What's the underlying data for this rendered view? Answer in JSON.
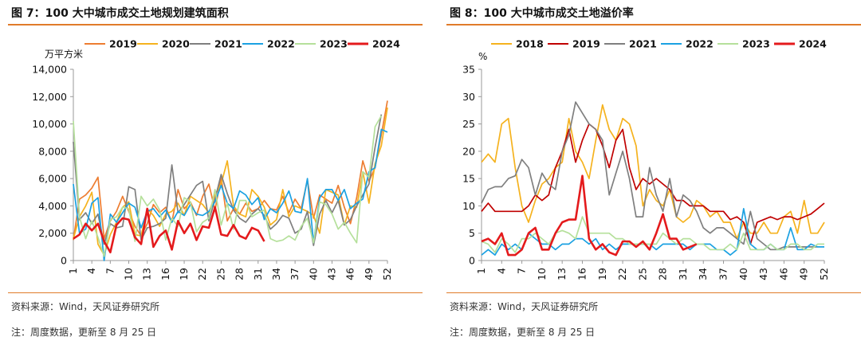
{
  "panels": [
    {
      "title": "图 7：100 大中城市成交土地规划建筑面积",
      "source": "资料来源：Wind，天风证券研究所",
      "note": "注：周度数据，更新至 8 月 25 日",
      "chart_data": {
        "type": "line",
        "ylabel": "万平方米",
        "ylim": [
          0,
          14000
        ],
        "yticks": [
          "0",
          "2,000",
          "4,000",
          "6,000",
          "8,000",
          "10,000",
          "12,000",
          "14,000"
        ],
        "xlim": [
          1,
          52
        ],
        "xticks": [
          "1",
          "4",
          "7",
          "10",
          "13",
          "16",
          "19",
          "22",
          "25",
          "28",
          "31",
          "34",
          "37",
          "40",
          "43",
          "46",
          "49",
          "52"
        ],
        "grid": false,
        "legend": "top",
        "series": [
          {
            "name": "2019",
            "color": "#ed7d31",
            "values": [
              1500,
              4500,
              4800,
              5300,
              6100,
              1600,
              2900,
              3600,
              4700,
              3600,
              2500,
              1800,
              2700,
              4100,
              3500,
              3900,
              2800,
              5200,
              3800,
              4300,
              3300,
              4700,
              5600,
              3700,
              6100,
              2900,
              3800,
              3400,
              4200,
              3600,
              3800,
              4400,
              3800,
              3700,
              4700,
              3500,
              4500,
              3800,
              5900,
              3100,
              4800,
              4500,
              4200,
              5500,
              3900,
              2700,
              4600,
              7300,
              5800,
              6800,
              9200,
              11700
            ]
          },
          {
            "name": "2020",
            "color": "#f5b21e",
            "values": [
              1600,
              3200,
              4000,
              5000,
              1200,
              400,
              1900,
              2800,
              3900,
              4300,
              1900,
              1800,
              3800,
              3300,
              2500,
              3400,
              3600,
              4200,
              3300,
              4700,
              4400,
              4100,
              3500,
              4800,
              5600,
              7300,
              4000,
              3400,
              3200,
              5200,
              4700,
              3900,
              2600,
              3000,
              5200,
              3200,
              4000,
              3800,
              3600,
              3300,
              2000,
              5200,
              5000,
              4800,
              2600,
              4000,
              3900,
              6500,
              4200,
              7100,
              8400,
              11200
            ]
          },
          {
            "name": "2021",
            "color": "#7f7f7f",
            "values": [
              8700,
              3000,
              3500,
              2700,
              3400,
              1200,
              2700,
              2400,
              2500,
              5400,
              5200,
              1500,
              2400,
              2500,
              2700,
              3100,
              7000,
              3500,
              4100,
              4800,
              5500,
              5800,
              2900,
              4500,
              6300,
              4900,
              3700,
              3100,
              2800,
              3400,
              3800,
              3300,
              2300,
              2700,
              3300,
              3100,
              2000,
              2300,
              3600,
              1100,
              3400,
              4400,
              3500,
              4400,
              2600,
              3000,
              4000,
              4800,
              5600,
              8300,
              10700
            ]
          },
          {
            "name": "2022",
            "color": "#1ba1e2",
            "values": [
              5600,
              2000,
              2300,
              4200,
              4600,
              0,
              3400,
              2800,
              3500,
              4200,
              3900,
              2400,
              3600,
              3800,
              3200,
              3700,
              2800,
              3600,
              3300,
              4100,
              3400,
              3300,
              3600,
              4300,
              5500,
              4200,
              3800,
              5100,
              4800,
              4100,
              4600,
              3000,
              3800,
              3500,
              4200,
              5100,
              3600,
              3500,
              6000,
              1300,
              4600,
              5200,
              5200,
              4400,
              5200,
              3800,
              4200,
              4500,
              6500,
              6800,
              9600,
              9400
            ]
          },
          {
            "name": "2023",
            "color": "#b5e09b",
            "values": [
              10200,
              3200,
              1600,
              2900,
              1700,
              300,
              3000,
              3200,
              3900,
              3800,
              1400,
              4700,
              4000,
              4500,
              3700,
              1500,
              3100,
              2500,
              4600,
              4300,
              2100,
              2800,
              3100,
              5200,
              2600,
              4200,
              2300,
              4400,
              4400,
              3200,
              3500,
              3700,
              1600,
              1400,
              1500,
              1800,
              1500,
              2500,
              3100,
              1300,
              4300,
              4100,
              3400,
              2300,
              2800,
              2000,
              1300,
              6500,
              6100,
              9800,
              10600
            ]
          },
          {
            "name": "2024",
            "color": "#e41a1c",
            "values": [
              1600,
              1900,
              2700,
              2200,
              2700,
              1400,
              600,
              2600,
              3100,
              3000,
              1700,
              1200,
              3800,
              1000,
              1800,
              2200,
              800,
              2900,
              2000,
              2700,
              1500,
              2500,
              2400,
              3900,
              1900,
              1800,
              2600,
              1800,
              1600,
              2400,
              2200,
              1400
            ]
          }
        ]
      }
    },
    {
      "title": "图 8：100 大中城市成交土地溢价率",
      "source": "资料来源：Wind，天风证券研究所",
      "note": "注：周度数据，更新至 8 月 25 日",
      "chart_data": {
        "type": "line",
        "ylabel": "%",
        "ylim": [
          0,
          35
        ],
        "yticks": [
          "0",
          "5",
          "10",
          "15",
          "20",
          "25",
          "30",
          "35"
        ],
        "xlim": [
          1,
          52
        ],
        "xticks": [
          "1",
          "4",
          "7",
          "10",
          "13",
          "16",
          "19",
          "22",
          "25",
          "28",
          "31",
          "34",
          "37",
          "40",
          "43",
          "46",
          "49",
          "52"
        ],
        "grid": false,
        "legend": "top",
        "series": [
          {
            "name": "2018",
            "color": "#f5b21e",
            "values": [
              18,
              19.5,
              18,
              25,
              26,
              17,
              10,
              7,
              11,
              14,
              15,
              17,
              18,
              26,
              20,
              18,
              15,
              22,
              28.5,
              24,
              22,
              26,
              25,
              21,
              10,
              13,
              11,
              10,
              13,
              8,
              7,
              8,
              11,
              10,
              8,
              9,
              7,
              7,
              4,
              7,
              5,
              5,
              7,
              5,
              5,
              8,
              9,
              5,
              11,
              5,
              5,
              7
            ]
          },
          {
            "name": "2019",
            "color": "#c00000",
            "values": [
              9,
              10.5,
              9,
              9,
              9,
              9,
              9,
              10,
              12,
              11,
              12,
              17,
              20,
              24,
              18,
              22,
              25,
              24,
              21,
              17,
              22,
              24,
              17,
              13,
              15,
              14,
              15,
              14,
              13,
              11,
              11,
              10,
              10,
              10,
              9,
              9,
              9,
              7.5,
              8,
              7,
              3,
              7,
              7.5,
              8,
              7.5,
              8,
              8,
              7.5,
              8,
              8.5,
              9.5,
              10.5
            ]
          },
          {
            "name": "2021",
            "color": "#7f7f7f",
            "values": [
              10.5,
              13,
              13.5,
              13.5,
              15,
              15.5,
              18.5,
              17,
              12,
              16,
              14,
              13,
              20,
              23,
              29,
              27,
              25,
              24,
              22,
              12,
              16,
              20,
              15,
              8,
              8,
              17,
              12,
              9,
              15,
              8,
              12,
              11,
              9,
              6,
              5,
              6,
              6,
              5,
              4,
              3,
              9,
              4,
              3,
              2,
              2,
              2.5,
              2.5,
              2.5,
              2.5,
              2.5,
              2.5
            ]
          },
          {
            "name": "2022",
            "color": "#1ba1e2",
            "values": [
              1,
              2,
              1,
              3,
              2,
              3,
              2,
              5,
              4,
              3,
              3,
              2,
              3,
              3,
              4,
              4,
              3,
              4,
              2,
              3,
              2,
              3,
              3,
              3,
              3,
              3,
              2,
              3,
              3,
              3,
              3,
              2,
              3,
              3,
              3,
              2,
              2,
              1,
              2,
              9.5,
              3,
              2,
              2,
              3,
              2,
              2,
              6,
              2,
              2,
              3,
              2.5,
              2.5
            ]
          },
          {
            "name": "2023",
            "color": "#b5e09b",
            "values": [
              3.5,
              3,
              1.5,
              4,
              3,
              1.5,
              4,
              4,
              5,
              4,
              3,
              5,
              5.5,
              5,
              4,
              8,
              5,
              5,
              5,
              5,
              4,
              4,
              3,
              3,
              3,
              3,
              3,
              5,
              4,
              3,
              4,
              4,
              3,
              3,
              2,
              2,
              2,
              3,
              2,
              5,
              2,
              2,
              2,
              3,
              2,
              2,
              3,
              3,
              2,
              2,
              3,
              3
            ]
          },
          {
            "name": "2024",
            "color": "#e41a1c",
            "values": [
              3.5,
              4,
              3,
              5,
              1,
              1,
              2,
              5,
              6,
              2,
              2,
              5,
              7,
              7.5,
              7.5,
              15.5,
              4,
              2,
              3,
              1.5,
              1,
              3.5,
              3.5,
              2.5,
              3.5,
              2,
              5,
              8.5,
              4,
              4,
              2,
              2.5,
              3
            ]
          }
        ]
      }
    }
  ]
}
